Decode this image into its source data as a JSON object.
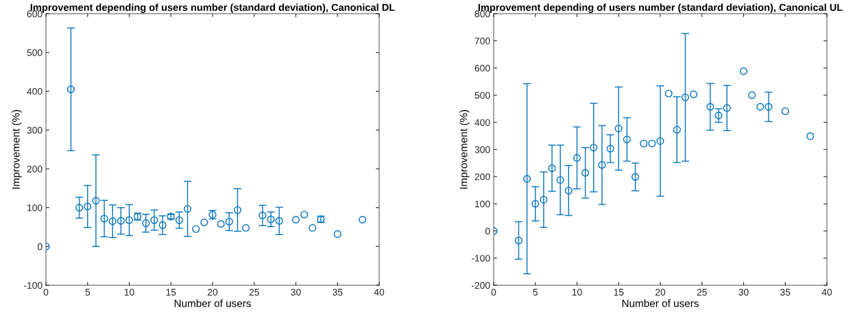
{
  "chart_data": [
    {
      "type": "scatter",
      "title": "Improvement depending of users number (standard deviation), Canonical DL",
      "xlabel": "Number of users",
      "ylabel": "Improvement (%)",
      "marker": "circle",
      "grid": false,
      "xlim": [
        0,
        40
      ],
      "xticks": [
        0,
        5,
        10,
        15,
        20,
        25,
        30,
        35,
        40
      ],
      "ylim": [
        -100,
        600
      ],
      "yticks": [
        -100,
        0,
        100,
        200,
        300,
        400,
        500,
        600
      ],
      "x": [
        0,
        3,
        4,
        5,
        6,
        7,
        8,
        9,
        10,
        11,
        12,
        13,
        14,
        15,
        16,
        17,
        18,
        19,
        20,
        21,
        22,
        23,
        24,
        26,
        27,
        28,
        30,
        31,
        32,
        33,
        35,
        38
      ],
      "series": [
        {
          "color": "#0072bd",
          "values": [
            0,
            405,
            100,
            103,
            118,
            72,
            65,
            66,
            68,
            77,
            60,
            68,
            55,
            77,
            68,
            97,
            45,
            62,
            82,
            58,
            64,
            94,
            48,
            80,
            70,
            66,
            69,
            82,
            48,
            70,
            32,
            69
          ],
          "errors": [
            null,
            158,
            27,
            54,
            118,
            47,
            42,
            34,
            40,
            9,
            23,
            26,
            24,
            6,
            21,
            71,
            null,
            null,
            11,
            null,
            23,
            55,
            null,
            26,
            19,
            35,
            null,
            null,
            null,
            8,
            null,
            null
          ]
        }
      ]
    },
    {
      "type": "scatter",
      "title": "Improvement depending of users number (standard deviation), Canonical UL",
      "xlabel": "Number of users",
      "ylabel": "Improvement (%)",
      "marker": "circle",
      "grid": false,
      "xlim": [
        0,
        40
      ],
      "xticks": [
        0,
        5,
        10,
        15,
        20,
        25,
        30,
        35,
        40
      ],
      "ylim": [
        -200,
        800
      ],
      "yticks": [
        -200,
        -100,
        0,
        100,
        200,
        300,
        400,
        500,
        600,
        700,
        800
      ],
      "x": [
        0,
        3,
        4,
        5,
        6,
        7,
        8,
        9,
        10,
        11,
        12,
        13,
        14,
        15,
        16,
        17,
        18,
        19,
        20,
        21,
        22,
        23,
        24,
        26,
        27,
        28,
        30,
        31,
        32,
        33,
        35,
        38
      ],
      "series": [
        {
          "color": "#0072bd",
          "values": [
            0,
            -35,
            192,
            100,
            115,
            231,
            188,
            149,
            269,
            214,
            307,
            243,
            303,
            377,
            337,
            199,
            322,
            322,
            331,
            506,
            373,
            492,
            503,
            457,
            425,
            453,
            588,
            500,
            457,
            457,
            441,
            349
          ],
          "errors": [
            null,
            69,
            350,
            63,
            102,
            85,
            128,
            92,
            114,
            93,
            163,
            145,
            51,
            153,
            80,
            51,
            null,
            null,
            203,
            null,
            121,
            235,
            null,
            86,
            25,
            83,
            null,
            null,
            null,
            54,
            null,
            null
          ]
        }
      ]
    }
  ]
}
